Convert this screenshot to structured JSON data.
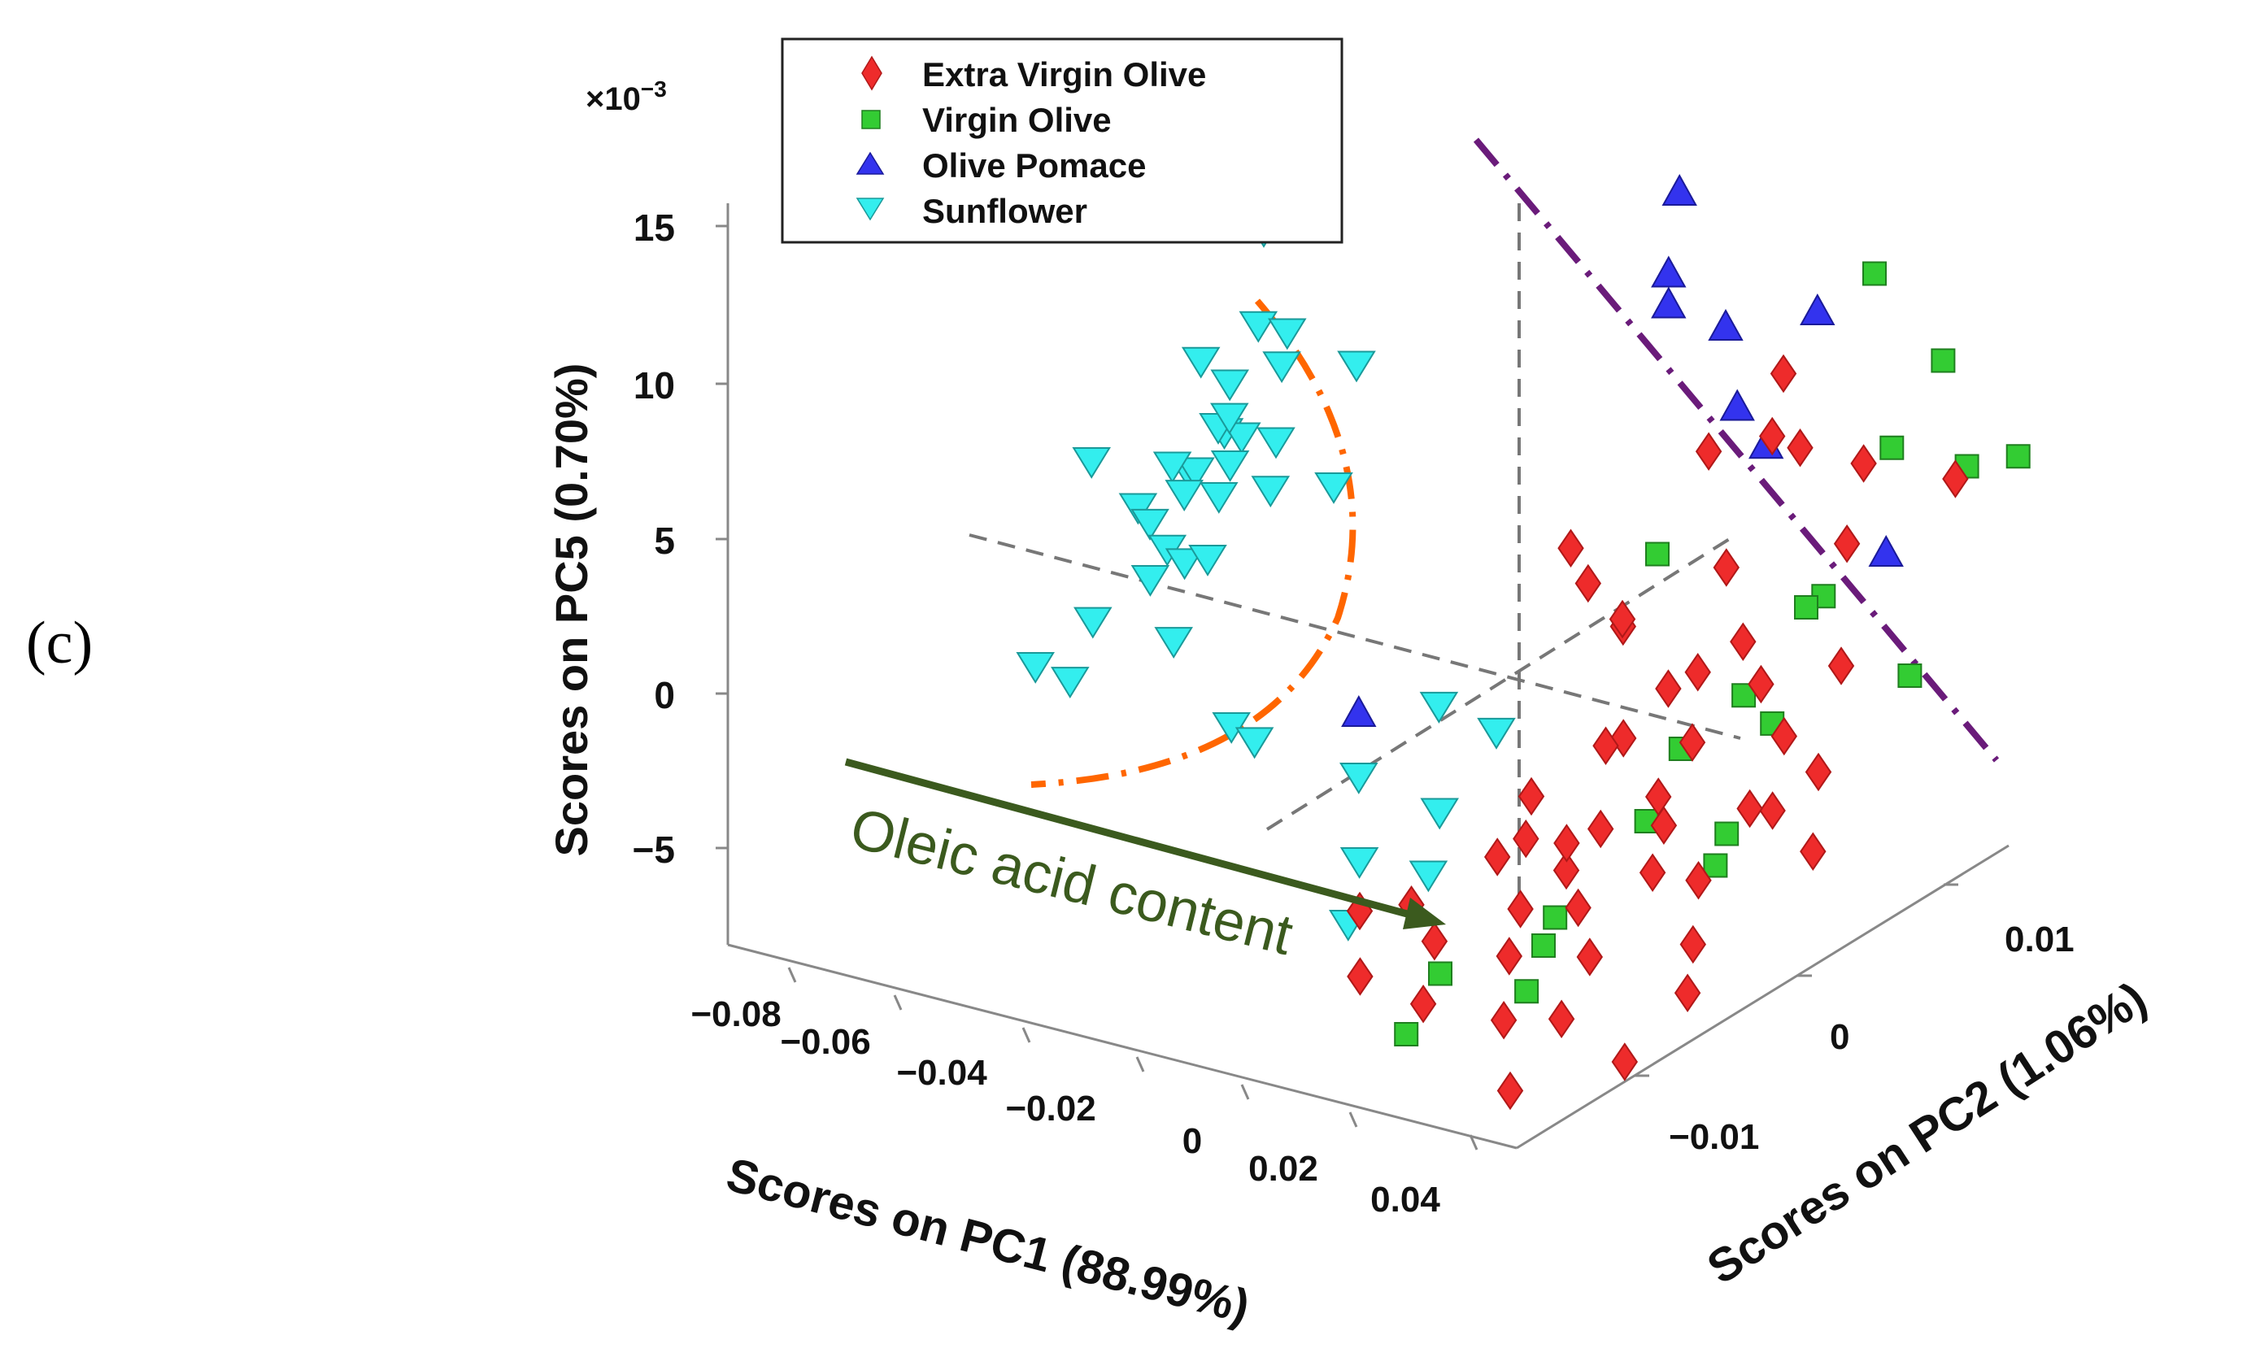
{
  "panel_label": "(c)",
  "chart_data": {
    "type": "scatter",
    "title": "",
    "exponent_label": "×10",
    "exponent_power": "−3",
    "axes": {
      "x": {
        "label": "Scores on PC1 (88.99%)",
        "range": [
          -0.08,
          0.05
        ],
        "ticks": [
          -0.08,
          -0.06,
          -0.04,
          -0.02,
          0,
          0.02,
          0.04
        ],
        "tick_labels": [
          "−0.08",
          "−0.06",
          "−0.04",
          "−0.02",
          "0",
          "0.02",
          "0.04"
        ]
      },
      "y": {
        "label": "Scores on PC2 (1.06%)",
        "range": [
          -0.016,
          0.016
        ],
        "ticks": [
          -0.01,
          0,
          0.01
        ],
        "tick_labels": [
          "−0.01",
          "0",
          "0.01"
        ]
      },
      "z": {
        "label": "Scores on PC5 (0.70%)",
        "range": [
          -7,
          16
        ],
        "ticks": [
          -5,
          0,
          5,
          10,
          15
        ],
        "tick_labels": [
          "−5",
          "0",
          "5",
          "10",
          "15"
        ]
      }
    },
    "legend_position": "top",
    "series": [
      {
        "name": "Extra Virgin Olive",
        "marker": "diamond",
        "color": "#ee2b2b",
        "points": [
          [
            0.03,
            0.004,
            10
          ],
          [
            0.032,
            0.003,
            8.5
          ],
          [
            0.021,
            0.003,
            7.5
          ],
          [
            0.025,
            0.006,
            6.5
          ],
          [
            0.036,
            0.006,
            6.5
          ],
          [
            0.028,
            0.002,
            4.5
          ],
          [
            0.041,
            0.004,
            5
          ],
          [
            0.005,
            0.001,
            4.5
          ],
          [
            0.008,
            0.001,
            3.5
          ],
          [
            0.018,
            0.0,
            3
          ],
          [
            0.01,
            0.002,
            2
          ],
          [
            0.027,
            0.001,
            1.5
          ],
          [
            0.023,
            0.004,
            1
          ],
          [
            0.034,
            0.002,
            1
          ],
          [
            0.04,
            0.004,
            1
          ],
          [
            0.014,
            0.003,
            -0.5
          ],
          [
            0.022,
            -0.001,
            0
          ],
          [
            0.03,
            0.0,
            -0.2
          ],
          [
            0.038,
            0.002,
            -0.5
          ],
          [
            0.015,
            0.0,
            -1
          ],
          [
            0.01,
            -0.002,
            -2
          ],
          [
            0.022,
            -0.002,
            -2.5
          ],
          [
            0.029,
            -0.001,
            -2.5
          ],
          [
            0.036,
            0.002,
            -3
          ],
          [
            0.04,
            0.003,
            -2
          ],
          [
            0.012,
            -0.004,
            -3
          ],
          [
            0.02,
            -0.003,
            -3.5
          ],
          [
            0.031,
            -0.002,
            -3.5
          ],
          [
            0.036,
            0.001,
            -2.5
          ],
          [
            0.005,
            -0.006,
            -4
          ],
          [
            0.016,
            -0.004,
            -4.5
          ],
          [
            0.026,
            -0.004,
            -4
          ],
          [
            0.035,
            -0.001,
            -4
          ],
          [
            0.043,
            0.002,
            -4
          ],
          [
            0.0,
            -0.007,
            -4
          ],
          [
            0.009,
            -0.006,
            -5
          ],
          [
            0.018,
            -0.005,
            -5.5
          ],
          [
            0.028,
            -0.004,
            -5.5
          ],
          [
            0.038,
            -0.002,
            -5.5
          ],
          [
            0.004,
            -0.008,
            -5.5
          ],
          [
            0.011,
            -0.007,
            -6.5
          ],
          [
            0.021,
            -0.006,
            -7
          ],
          [
            0.031,
            -0.006,
            -6.5
          ],
          [
            0.041,
            -0.003,
            -6.5
          ],
          [
            0.03,
            -0.008,
            -8
          ],
          [
            0.038,
            -0.005,
            -8
          ],
          [
            0.044,
            0.008,
            5.5
          ],
          [
            0.024,
            -0.004,
            -2
          ],
          [
            0.032,
            -0.002,
            -1
          ],
          [
            0.013,
            -0.003,
            -2.8
          ]
        ]
      },
      {
        "name": "Virgin Olive",
        "marker": "square",
        "color": "#33cc33",
        "points": [
          [
            0.03,
            0.008,
            11.5
          ],
          [
            0.034,
            0.01,
            8
          ],
          [
            0.033,
            0.008,
            6
          ],
          [
            0.046,
            0.008,
            6
          ],
          [
            0.047,
            0.01,
            5.5
          ],
          [
            0.02,
            0.001,
            5
          ],
          [
            0.033,
            0.005,
            2.5
          ],
          [
            0.03,
            0.005,
            2
          ],
          [
            0.044,
            0.006,
            0
          ],
          [
            0.031,
            0.002,
            0.5
          ],
          [
            0.028,
            0.0,
            -0.5
          ],
          [
            0.032,
            0.003,
            -0.8
          ],
          [
            0.026,
            -0.001,
            -2.5
          ],
          [
            0.032,
            0.001,
            -3.5
          ],
          [
            0.034,
            0.0,
            -4
          ],
          [
            0.022,
            -0.004,
            -4.5
          ],
          [
            0.02,
            -0.004,
            -5.5
          ],
          [
            0.021,
            -0.005,
            -6.5
          ],
          [
            0.012,
            -0.008,
            -7
          ],
          [
            0.01,
            -0.006,
            -6
          ]
        ]
      },
      {
        "name": "Olive Pomace",
        "marker": "triangle-up",
        "color": "#3333ee",
        "points": [
          [
            0.012,
            0.004,
            15
          ],
          [
            0.018,
            0.002,
            13.5
          ],
          [
            0.018,
            0.002,
            12.5
          ],
          [
            0.02,
            0.004,
            11
          ],
          [
            0.028,
            0.006,
            11
          ],
          [
            0.022,
            0.004,
            8.5
          ],
          [
            0.027,
            0.004,
            7.5
          ],
          [
            0.032,
            0.008,
            2.5
          ],
          [
            -0.012,
            -0.004,
            0.5
          ]
        ]
      },
      {
        "name": "Sunflower",
        "marker": "triangle-down",
        "color": "#33eeee",
        "points": [
          [
            -0.06,
            0.004,
            10.5
          ],
          [
            -0.057,
            0.003,
            8
          ],
          [
            -0.052,
            0.003,
            8
          ],
          [
            -0.049,
            0.002,
            7.5
          ],
          [
            -0.04,
            0.003,
            7.5
          ],
          [
            -0.063,
            0.002,
            7
          ],
          [
            -0.058,
            0.002,
            6.5
          ],
          [
            -0.055,
            0.001,
            5.5
          ],
          [
            -0.06,
            0.002,
            5
          ],
          [
            -0.057,
            0.0,
            4.5
          ],
          [
            -0.052,
            0.001,
            5.5
          ],
          [
            -0.05,
            0.002,
            5
          ],
          [
            -0.062,
            0.003,
            4.8
          ],
          [
            -0.054,
            0.001,
            4.5
          ],
          [
            -0.06,
            0.001,
            4
          ],
          [
            -0.064,
            0.001,
            4
          ],
          [
            -0.058,
            0.0,
            3.8
          ],
          [
            -0.052,
            0.0,
            4
          ],
          [
            -0.047,
            0.001,
            4
          ],
          [
            -0.04,
            0.002,
            4
          ],
          [
            -0.078,
            0.001,
            3.5
          ],
          [
            -0.066,
            0.0,
            3
          ],
          [
            -0.06,
            -0.001,
            3.2
          ],
          [
            -0.057,
            -0.001,
            2.5
          ],
          [
            -0.054,
            -0.001,
            2.2
          ],
          [
            -0.05,
            -0.001,
            2.5
          ],
          [
            -0.056,
            -0.002,
            2
          ],
          [
            -0.062,
            -0.003,
            0.8
          ],
          [
            -0.048,
            -0.003,
            0.8
          ],
          [
            -0.068,
            -0.004,
            -0.5
          ],
          [
            -0.062,
            -0.004,
            -0.7
          ],
          [
            -0.038,
            -0.003,
            -1.5
          ],
          [
            -0.034,
            -0.003,
            -1.8
          ],
          [
            -0.012,
            -0.004,
            -1.5
          ],
          [
            -0.006,
            -0.002,
            0.2
          ],
          [
            0.0,
            -0.001,
            -0.8
          ],
          [
            0.002,
            -0.004,
            -2
          ],
          [
            -0.004,
            -0.006,
            -3
          ],
          [
            -0.002,
            -0.007,
            -4.5
          ],
          [
            0.004,
            -0.005,
            -3.5
          ]
        ]
      }
    ],
    "annotations": [
      {
        "type": "arrow",
        "text": "Oleic acid content",
        "color": "#3b5a1e"
      },
      {
        "type": "boundary",
        "style": "dash-dot",
        "color": "#ff6600"
      },
      {
        "type": "boundary",
        "style": "dash-dot",
        "color": "#6a1b7a"
      }
    ]
  }
}
